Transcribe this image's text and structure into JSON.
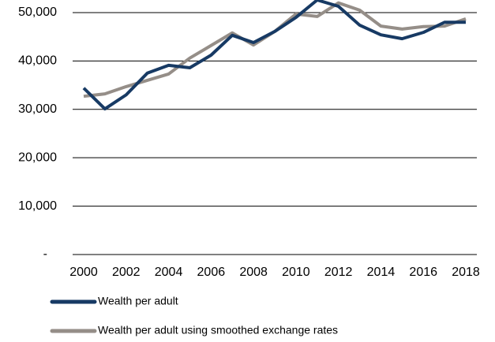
{
  "chart_data": {
    "type": "line",
    "x": [
      2000,
      2001,
      2002,
      2003,
      2004,
      2005,
      2006,
      2007,
      2008,
      2009,
      2010,
      2011,
      2012,
      2013,
      2014,
      2015,
      2016,
      2017,
      2018
    ],
    "series": [
      {
        "name": "Wealth per adult",
        "color": "#173a64",
        "values": [
          34400,
          30100,
          33000,
          37500,
          39100,
          38600,
          41200,
          45300,
          43800,
          46100,
          49000,
          52600,
          51300,
          47400,
          45400,
          44600,
          45900,
          48000,
          48000
        ]
      },
      {
        "name": "Wealth per adult using smoothed exchange rates",
        "color": "#958e88",
        "values": [
          32700,
          33200,
          34700,
          36000,
          37300,
          40600,
          43200,
          45800,
          43300,
          46100,
          49700,
          49200,
          52000,
          50500,
          47200,
          46600,
          47100,
          47200,
          48700
        ]
      }
    ],
    "xlim": [
      2000,
      2018
    ],
    "xticks": [
      2000,
      2002,
      2004,
      2006,
      2008,
      2010,
      2012,
      2014,
      2016,
      2018
    ],
    "ylim": [
      0,
      52600
    ],
    "yticks": [
      {
        "value": 0,
        "label": "-"
      },
      {
        "value": 10000,
        "label": "10,000"
      },
      {
        "value": 20000,
        "label": "20,000"
      },
      {
        "value": 30000,
        "label": "30,000"
      },
      {
        "value": 40000,
        "label": "40,000"
      },
      {
        "value": 50000,
        "label": "50,000"
      }
    ],
    "grid": true,
    "legend": "bottom"
  }
}
